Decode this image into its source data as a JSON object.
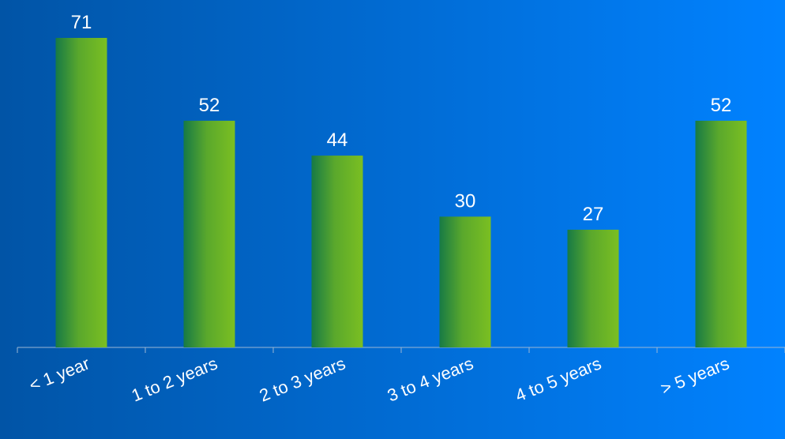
{
  "chart_data": {
    "type": "bar",
    "categories": [
      "< 1 year",
      "1 to 2 years",
      "2 to 3 years",
      "3 to 4 years",
      "4 to 5 years",
      "> 5 years"
    ],
    "values": [
      71,
      52,
      44,
      30,
      27,
      52
    ],
    "title": "",
    "xlabel": "",
    "ylabel": "",
    "ylim": [
      0,
      71
    ],
    "grid": false,
    "legend": "none",
    "data_labels": true,
    "colors": {
      "background_left": "#0154a6",
      "background_right": "#0182ff",
      "bar_dark": "#177a45",
      "bar_light": "#7bbf22",
      "axis": "#9bb6d4",
      "text": "#ffffff"
    }
  }
}
